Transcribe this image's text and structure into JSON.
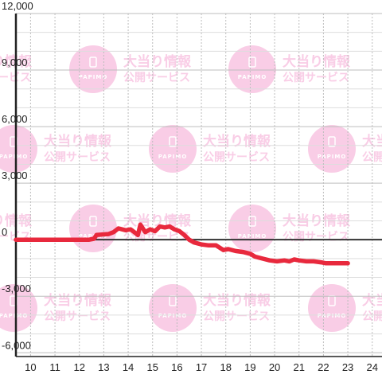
{
  "watermark": {
    "title": "大当り情報",
    "subtitle": "公開サービス",
    "brand": "PAPIMO"
  },
  "chart_data": {
    "type": "line",
    "title": "",
    "xlabel": "",
    "ylabel": "",
    "xlim": [
      9.4,
      24.4
    ],
    "ylim": [
      -6200,
      12000
    ],
    "x_ticks": [
      10,
      11,
      12,
      13,
      14,
      15,
      16,
      17,
      18,
      19,
      20,
      21,
      22,
      23,
      24
    ],
    "x_tick_labels": [
      "10",
      "11",
      "12",
      "13",
      "14",
      "15",
      "16",
      "17",
      "18",
      "19",
      "20",
      "21",
      "22",
      "23",
      "24"
    ],
    "y_ticks": [
      12000,
      9000,
      6000,
      3000,
      0,
      -3000,
      -6000
    ],
    "y_tick_labels": [
      "12,000",
      "9,000",
      "6,000",
      "3,000",
      "0",
      "-3,000",
      "-6,000"
    ],
    "grid": true,
    "minor_y_step": 1000,
    "colors": {
      "line": "#e8293d",
      "axis": "#222222",
      "zero_line": "#333333",
      "grid_major": "#bdbdbd",
      "grid_minor": "#dddddd",
      "watermark": "#f9cde6"
    },
    "series": [
      {
        "name": "",
        "x": [
          9.4,
          12.4,
          12.6,
          12.7,
          13.0,
          13.2,
          13.4,
          13.6,
          13.9,
          14.1,
          14.2,
          14.4,
          14.5,
          14.7,
          14.9,
          15.1,
          15.3,
          15.5,
          15.7,
          15.9,
          16.1,
          16.3,
          16.5,
          16.7,
          17.0,
          17.3,
          17.6,
          17.9,
          18.1,
          18.4,
          18.7,
          19.0,
          19.2,
          19.5,
          19.8,
          20.1,
          20.4,
          20.6,
          20.8,
          21.0,
          21.3,
          21.6,
          21.9,
          22.1,
          22.4,
          22.7,
          23.0
        ],
        "y": [
          0,
          0,
          50,
          250,
          280,
          300,
          400,
          600,
          500,
          550,
          450,
          250,
          800,
          400,
          550,
          450,
          700,
          650,
          700,
          550,
          450,
          250,
          0,
          -150,
          -250,
          -300,
          -300,
          -550,
          -500,
          -600,
          -650,
          -750,
          -900,
          -1000,
          -1100,
          -1150,
          -1100,
          -1150,
          -1050,
          -1100,
          -1150,
          -1150,
          -1200,
          -1250,
          -1250,
          -1250,
          -1250
        ]
      }
    ]
  }
}
